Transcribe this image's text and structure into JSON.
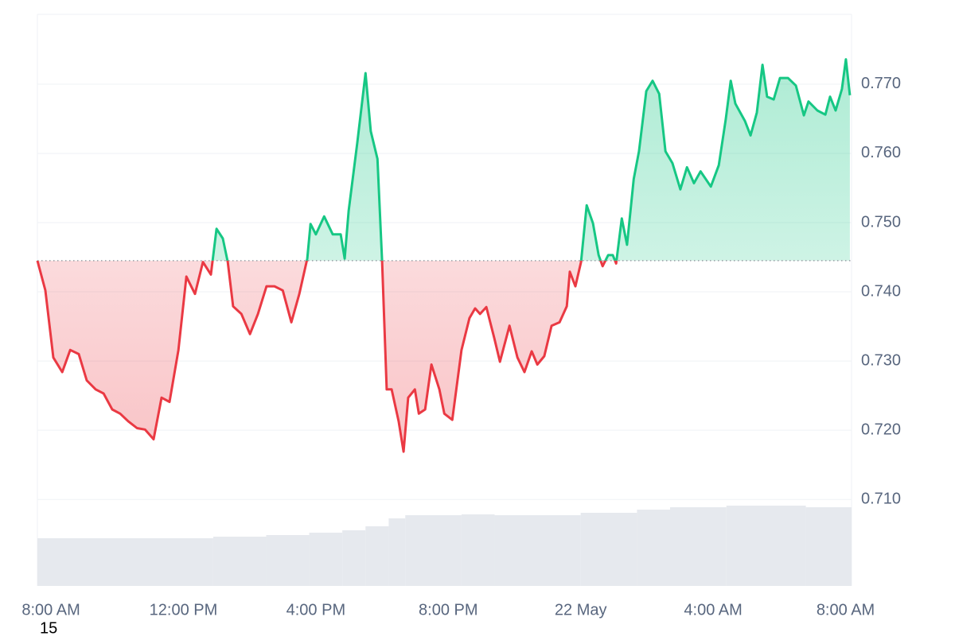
{
  "chart_data": {
    "type": "baseline-line",
    "up_color": "#16c784",
    "down_color": "#ea3943",
    "volume_color": "#e6e9ee",
    "baseline": 0.7445,
    "xlim": [
      -0.41,
      24.18
    ],
    "xticks": [
      {
        "value": 0,
        "label": "8:00 AM"
      },
      {
        "value": 4,
        "label": "12:00 PM"
      },
      {
        "value": 8,
        "label": "4:00 PM"
      },
      {
        "value": 12,
        "label": "8:00 PM"
      },
      {
        "value": 16,
        "label": "22 May"
      },
      {
        "value": 20,
        "label": "4:00 AM"
      },
      {
        "value": 24,
        "label": "8:00 AM"
      }
    ],
    "ylim": [
      0.6975,
      0.7801
    ],
    "yticks": [
      {
        "value": 0.71,
        "label": "0.710"
      },
      {
        "value": 0.72,
        "label": "0.720"
      },
      {
        "value": 0.73,
        "label": "0.730"
      },
      {
        "value": 0.74,
        "label": "0.740"
      },
      {
        "value": 0.75,
        "label": "0.750"
      },
      {
        "value": 0.76,
        "label": "0.760"
      },
      {
        "value": 0.77,
        "label": "0.770"
      }
    ],
    "grid": true,
    "x": [
      -0.41,
      -0.17,
      0.07,
      0.34,
      0.58,
      0.84,
      1.08,
      1.35,
      1.59,
      1.85,
      2.09,
      2.33,
      2.6,
      2.84,
      3.1,
      3.34,
      3.58,
      3.85,
      4.09,
      4.35,
      4.59,
      4.83,
      5.0,
      5.19,
      5.34,
      5.5,
      5.75,
      6.01,
      6.25,
      6.51,
      6.75,
      7.0,
      7.26,
      7.5,
      7.74,
      7.84,
      8.0,
      8.25,
      8.51,
      8.75,
      8.87,
      8.99,
      9.25,
      9.5,
      9.66,
      9.86,
      10.0,
      10.14,
      10.29,
      10.5,
      10.65,
      10.79,
      10.99,
      11.11,
      11.3,
      11.49,
      11.73,
      11.88,
      12.12,
      12.4,
      12.64,
      12.81,
      12.96,
      13.15,
      13.39,
      13.56,
      13.85,
      14.09,
      14.3,
      14.52,
      14.69,
      14.9,
      15.12,
      15.36,
      15.58,
      15.67,
      15.84,
      16.01,
      16.18,
      16.37,
      16.54,
      16.66,
      16.83,
      16.97,
      17.07,
      17.24,
      17.4,
      17.6,
      17.76,
      17.98,
      18.17,
      18.37,
      18.56,
      18.77,
      19.01,
      19.21,
      19.42,
      19.62,
      19.93,
      20.17,
      20.38,
      20.53,
      20.67,
      20.96,
      21.13,
      21.32,
      21.49,
      21.63,
      21.83,
      22.02,
      22.26,
      22.5,
      22.74,
      22.88,
      23.15,
      23.39,
      23.53,
      23.7,
      23.89,
      24.01,
      24.13
    ],
    "values": [
      0.7445,
      0.7402,
      0.7305,
      0.7284,
      0.7316,
      0.731,
      0.7272,
      0.7259,
      0.7253,
      0.723,
      0.7224,
      0.7213,
      0.7203,
      0.7201,
      0.7187,
      0.7247,
      0.7241,
      0.7316,
      0.7422,
      0.7397,
      0.7443,
      0.7425,
      0.7491,
      0.7477,
      0.7443,
      0.7379,
      0.7368,
      0.7339,
      0.7368,
      0.7408,
      0.7408,
      0.7402,
      0.7356,
      0.7397,
      0.7448,
      0.7498,
      0.7483,
      0.7509,
      0.7483,
      0.7483,
      0.7448,
      0.7517,
      0.7615,
      0.7716,
      0.7632,
      0.7592,
      0.7445,
      0.7259,
      0.7259,
      0.7213,
      0.7169,
      0.7247,
      0.7259,
      0.7224,
      0.723,
      0.7295,
      0.7259,
      0.7224,
      0.7215,
      0.7316,
      0.7362,
      0.7376,
      0.7368,
      0.7378,
      0.7333,
      0.7299,
      0.7351,
      0.7305,
      0.7284,
      0.7314,
      0.7295,
      0.7307,
      0.7351,
      0.7356,
      0.7379,
      0.7429,
      0.7408,
      0.7443,
      0.7525,
      0.7499,
      0.7453,
      0.7437,
      0.7453,
      0.7453,
      0.7441,
      0.7506,
      0.7468,
      0.7563,
      0.7603,
      0.769,
      0.7705,
      0.7686,
      0.7603,
      0.7586,
      0.7548,
      0.758,
      0.7557,
      0.7574,
      0.7552,
      0.7583,
      0.7649,
      0.7705,
      0.7672,
      0.7647,
      0.7626,
      0.7659,
      0.7728,
      0.7682,
      0.7678,
      0.7709,
      0.7709,
      0.7698,
      0.7655,
      0.7675,
      0.7662,
      0.7656,
      0.7682,
      0.7662,
      0.7693,
      0.7736,
      0.7684
    ],
    "volume": {
      "x": [
        -0.41,
        4.9,
        6.5,
        7.8,
        8.8,
        9.5,
        10.2,
        10.7,
        12.4,
        13.4,
        16.0,
        17.7,
        18.7,
        20.4,
        22.8
      ],
      "values": [
        60,
        62,
        64,
        67,
        70,
        75,
        85,
        89,
        90,
        89,
        92,
        96,
        99,
        101,
        99
      ]
    },
    "corner_label": "15"
  }
}
